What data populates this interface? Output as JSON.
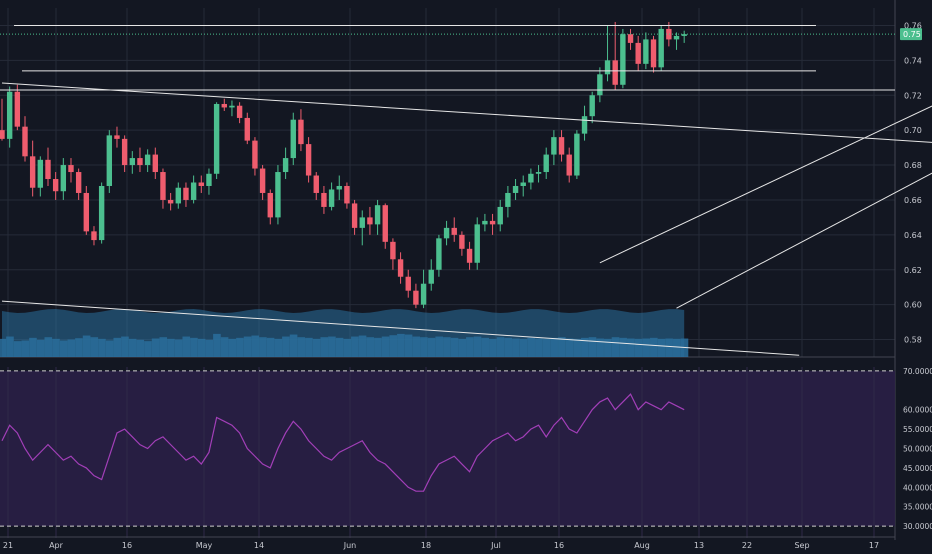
{
  "colors": {
    "background": "#131722",
    "grid": "#262b38",
    "bull": "#4cbf8f",
    "bear": "#ef5d6e",
    "volume": "#2a6f9c",
    "trendline": "#e6e6e6",
    "rsi_line": "#a23fb8",
    "rsi_band": "#2a1f46",
    "axis_text": "#c8cad1",
    "price_tag_bg": "#4cbf8f"
  },
  "chart_data": [
    {
      "type": "candlestick",
      "x_axis_labels": [
        "21",
        "Apr",
        "16",
        "May",
        "14",
        "Jun",
        "18",
        "Jul",
        "16",
        "Aug",
        "13",
        "22",
        "Sep",
        "17"
      ],
      "y_ticks": [
        "0.76",
        "0.74",
        "0.72",
        "0.70",
        "0.68",
        "0.66",
        "0.64",
        "0.62",
        "0.60",
        "0.58"
      ],
      "ylim": [
        0.57,
        0.77
      ],
      "last_price_label": "0.75",
      "last_price": 0.755,
      "horizontal_lines": [
        0.76,
        0.734,
        0.723
      ],
      "trendlines": [
        {
          "from": [
            0,
            0.727
          ],
          "to": [
            207,
            0.669
          ]
        },
        {
          "from": [
            0,
            0.602
          ],
          "to": [
            104,
            0.571
          ]
        },
        {
          "from": [
            78,
            0.624
          ],
          "to": [
            147,
            0.767
          ]
        },
        {
          "from": [
            88,
            0.598
          ],
          "to": [
            160,
            0.765
          ]
        }
      ],
      "candles": [
        [
          0.7,
          0.718,
          0.694,
          0.695
        ],
        [
          0.695,
          0.725,
          0.69,
          0.722
        ],
        [
          0.722,
          0.726,
          0.7,
          0.702
        ],
        [
          0.702,
          0.708,
          0.682,
          0.685
        ],
        [
          0.685,
          0.694,
          0.662,
          0.667
        ],
        [
          0.667,
          0.685,
          0.662,
          0.683
        ],
        [
          0.683,
          0.69,
          0.668,
          0.672
        ],
        [
          0.672,
          0.676,
          0.66,
          0.665
        ],
        [
          0.665,
          0.684,
          0.66,
          0.68
        ],
        [
          0.68,
          0.684,
          0.67,
          0.676
        ],
        [
          0.676,
          0.678,
          0.66,
          0.664
        ],
        [
          0.664,
          0.668,
          0.64,
          0.642
        ],
        [
          0.642,
          0.645,
          0.634,
          0.637
        ],
        [
          0.637,
          0.67,
          0.635,
          0.668
        ],
        [
          0.668,
          0.7,
          0.664,
          0.697
        ],
        [
          0.697,
          0.702,
          0.69,
          0.695
        ],
        [
          0.695,
          0.697,
          0.676,
          0.68
        ],
        [
          0.68,
          0.688,
          0.675,
          0.684
        ],
        [
          0.684,
          0.69,
          0.676,
          0.68
        ],
        [
          0.68,
          0.689,
          0.676,
          0.686
        ],
        [
          0.686,
          0.69,
          0.672,
          0.676
        ],
        [
          0.676,
          0.678,
          0.655,
          0.66
        ],
        [
          0.66,
          0.664,
          0.654,
          0.658
        ],
        [
          0.658,
          0.67,
          0.655,
          0.667
        ],
        [
          0.667,
          0.67,
          0.656,
          0.66
        ],
        [
          0.66,
          0.674,
          0.658,
          0.67
        ],
        [
          0.67,
          0.674,
          0.664,
          0.668
        ],
        [
          0.668,
          0.678,
          0.663,
          0.675
        ],
        [
          0.675,
          0.716,
          0.672,
          0.715
        ],
        [
          0.715,
          0.718,
          0.711,
          0.713
        ],
        [
          0.713,
          0.717,
          0.708,
          0.714
        ],
        [
          0.714,
          0.716,
          0.704,
          0.707
        ],
        [
          0.707,
          0.71,
          0.692,
          0.694
        ],
        [
          0.694,
          0.696,
          0.674,
          0.678
        ],
        [
          0.678,
          0.68,
          0.66,
          0.664
        ],
        [
          0.664,
          0.666,
          0.646,
          0.65
        ],
        [
          0.65,
          0.68,
          0.646,
          0.676
        ],
        [
          0.676,
          0.69,
          0.672,
          0.684
        ],
        [
          0.684,
          0.71,
          0.68,
          0.706
        ],
        [
          0.706,
          0.712,
          0.688,
          0.692
        ],
        [
          0.692,
          0.696,
          0.67,
          0.674
        ],
        [
          0.674,
          0.676,
          0.66,
          0.664
        ],
        [
          0.664,
          0.668,
          0.652,
          0.656
        ],
        [
          0.656,
          0.67,
          0.654,
          0.666
        ],
        [
          0.666,
          0.674,
          0.66,
          0.668
        ],
        [
          0.668,
          0.67,
          0.655,
          0.658
        ],
        [
          0.658,
          0.66,
          0.64,
          0.644
        ],
        [
          0.644,
          0.654,
          0.634,
          0.65
        ],
        [
          0.65,
          0.656,
          0.64,
          0.646
        ],
        [
          0.646,
          0.66,
          0.64,
          0.657
        ],
        [
          0.657,
          0.658,
          0.632,
          0.636
        ],
        [
          0.636,
          0.638,
          0.62,
          0.626
        ],
        [
          0.626,
          0.63,
          0.612,
          0.616
        ],
        [
          0.616,
          0.62,
          0.604,
          0.608
        ],
        [
          0.608,
          0.612,
          0.598,
          0.6
        ],
        [
          0.6,
          0.62,
          0.598,
          0.612
        ],
        [
          0.612,
          0.626,
          0.608,
          0.62
        ],
        [
          0.62,
          0.64,
          0.616,
          0.638
        ],
        [
          0.638,
          0.648,
          0.634,
          0.644
        ],
        [
          0.644,
          0.65,
          0.636,
          0.64
        ],
        [
          0.64,
          0.642,
          0.628,
          0.632
        ],
        [
          0.632,
          0.636,
          0.62,
          0.624
        ],
        [
          0.624,
          0.65,
          0.62,
          0.646
        ],
        [
          0.646,
          0.652,
          0.642,
          0.648
        ],
        [
          0.648,
          0.652,
          0.64,
          0.646
        ],
        [
          0.646,
          0.66,
          0.642,
          0.656
        ],
        [
          0.656,
          0.668,
          0.65,
          0.664
        ],
        [
          0.664,
          0.672,
          0.66,
          0.668
        ],
        [
          0.668,
          0.674,
          0.662,
          0.67
        ],
        [
          0.67,
          0.678,
          0.666,
          0.675
        ],
        [
          0.675,
          0.68,
          0.67,
          0.676
        ],
        [
          0.676,
          0.69,
          0.672,
          0.686
        ],
        [
          0.686,
          0.7,
          0.68,
          0.696
        ],
        [
          0.696,
          0.7,
          0.682,
          0.686
        ],
        [
          0.686,
          0.69,
          0.67,
          0.674
        ],
        [
          0.674,
          0.7,
          0.672,
          0.698
        ],
        [
          0.698,
          0.714,
          0.694,
          0.708
        ],
        [
          0.708,
          0.722,
          0.704,
          0.72
        ],
        [
          0.72,
          0.736,
          0.716,
          0.732
        ],
        [
          0.732,
          0.76,
          0.728,
          0.74
        ],
        [
          0.74,
          0.762,
          0.723,
          0.726
        ],
        [
          0.726,
          0.758,
          0.724,
          0.755
        ],
        [
          0.755,
          0.758,
          0.746,
          0.75
        ],
        [
          0.75,
          0.754,
          0.734,
          0.738
        ],
        [
          0.738,
          0.756,
          0.735,
          0.752
        ],
        [
          0.752,
          0.754,
          0.733,
          0.736
        ],
        [
          0.736,
          0.76,
          0.734,
          0.758
        ],
        [
          0.758,
          0.762,
          0.748,
          0.752
        ],
        [
          0.752,
          0.756,
          0.746,
          0.754
        ],
        [
          0.754,
          0.757,
          0.75,
          0.755
        ]
      ],
      "volume": [
        0.55,
        0.62,
        0.48,
        0.5,
        0.58,
        0.52,
        0.6,
        0.55,
        0.5,
        0.53,
        0.57,
        0.65,
        0.6,
        0.55,
        0.5,
        0.58,
        0.62,
        0.55,
        0.52,
        0.48,
        0.56,
        0.6,
        0.55,
        0.53,
        0.62,
        0.58,
        0.55,
        0.52,
        0.7,
        0.6,
        0.55,
        0.58,
        0.62,
        0.65,
        0.6,
        0.58,
        0.55,
        0.62,
        0.68,
        0.6,
        0.58,
        0.55,
        0.6,
        0.62,
        0.58,
        0.55,
        0.62,
        0.65,
        0.6,
        0.58,
        0.62,
        0.66,
        0.7,
        0.68,
        0.62,
        0.6,
        0.58,
        0.62,
        0.6,
        0.58,
        0.55,
        0.6,
        0.62,
        0.58,
        0.55,
        0.6,
        0.58,
        0.56,
        0.55,
        0.58,
        0.56,
        0.55,
        0.58,
        0.6,
        0.56,
        0.55,
        0.58,
        0.6,
        0.56,
        0.55,
        0.6,
        0.58,
        0.56,
        0.55,
        0.56,
        0.58,
        0.55,
        0.56,
        0.55,
        0.56
      ]
    },
    {
      "type": "line",
      "y_ticks": [
        "70.0000",
        "60.0000",
        "55.0000",
        "50.0000",
        "45.0000",
        "40.0000",
        "35.0000",
        "30.0000"
      ],
      "ylim": [
        29,
        71
      ],
      "levels": [
        70,
        30
      ],
      "values": [
        52,
        56,
        54,
        50,
        47,
        49,
        51,
        49,
        47,
        48,
        46,
        45,
        43,
        42,
        48,
        54,
        55,
        53,
        51,
        50,
        52,
        53,
        51,
        49,
        47,
        48,
        46,
        49,
        58,
        57,
        56,
        54,
        50,
        48,
        46,
        45,
        50,
        54,
        57,
        55,
        52,
        50,
        48,
        47,
        49,
        50,
        51,
        52,
        49,
        47,
        46,
        44,
        42,
        40,
        39,
        39,
        43,
        46,
        47,
        48,
        46,
        44,
        48,
        50,
        52,
        53,
        54,
        52,
        53,
        55,
        56,
        53,
        56,
        58,
        55,
        54,
        57,
        60,
        62,
        63,
        60,
        62,
        64,
        60,
        62,
        61,
        60,
        62,
        61,
        60
      ]
    }
  ]
}
